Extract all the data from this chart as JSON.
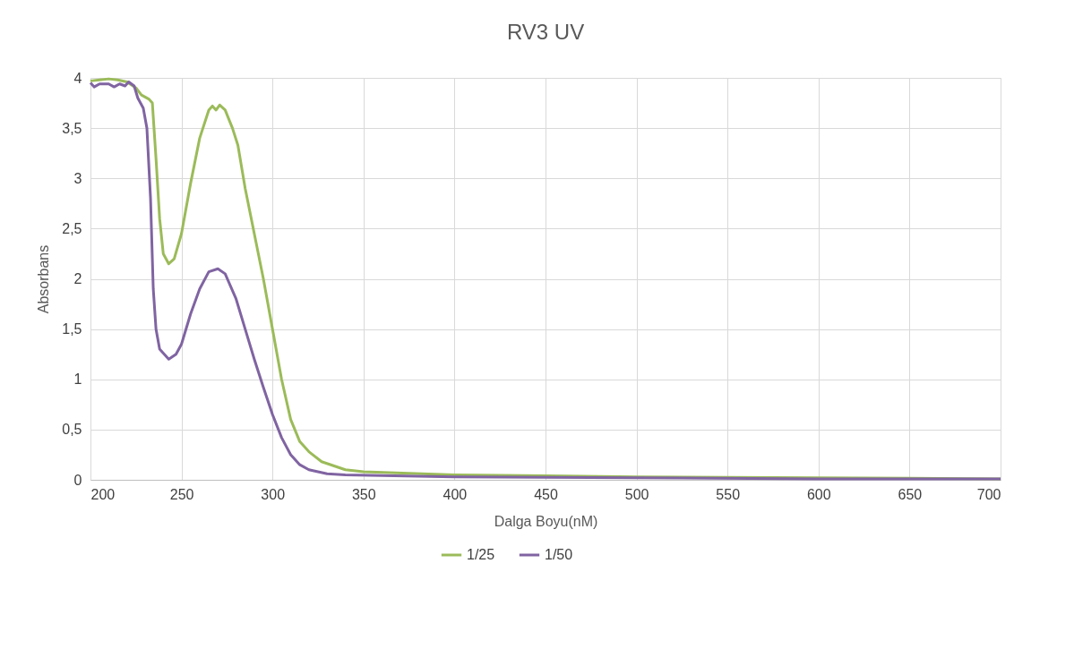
{
  "chart_data": {
    "type": "line",
    "title": "RV3 UV",
    "xlabel": "Dalga Boyu(nM)",
    "ylabel": "Absorbans",
    "xlim": [
      200,
      700
    ],
    "xticks": [
      200,
      250,
      300,
      350,
      400,
      450,
      500,
      550,
      600,
      650,
      700
    ],
    "ylim": [
      0,
      4
    ],
    "yticks": [
      0,
      {
        "value": 0.5,
        "label": "0,5"
      },
      1,
      {
        "value": 1.5,
        "label": "1,5"
      },
      2,
      {
        "value": 2.5,
        "label": "2,5"
      },
      3,
      {
        "value": 3.5,
        "label": "3,5"
      },
      4
    ],
    "grid": true,
    "legend": "bottom",
    "marker": "none",
    "line_style": "solid",
    "series": [
      {
        "name": "1/25",
        "color": "#9bbb59",
        "x": [
          200,
          205,
          210,
          215,
          220,
          225,
          228,
          232,
          234,
          236,
          238,
          240,
          243,
          246,
          250,
          255,
          260,
          265,
          267,
          269,
          271,
          274,
          278,
          281,
          285,
          290,
          295,
          300,
          305,
          310,
          315,
          320,
          327,
          340,
          350,
          400,
          450,
          500,
          600,
          700
        ],
        "values": [
          3.97,
          3.98,
          3.99,
          3.98,
          3.96,
          3.9,
          3.83,
          3.79,
          3.75,
          3.2,
          2.6,
          2.25,
          2.15,
          2.2,
          2.45,
          2.95,
          3.4,
          3.68,
          3.72,
          3.68,
          3.73,
          3.68,
          3.5,
          3.33,
          2.9,
          2.45,
          2.0,
          1.5,
          1.0,
          0.6,
          0.38,
          0.28,
          0.18,
          0.1,
          0.08,
          0.05,
          0.04,
          0.03,
          0.02,
          0.01
        ]
      },
      {
        "name": "1/50",
        "color": "#8064a2",
        "x": [
          200,
          202,
          205,
          210,
          213,
          216,
          219,
          221,
          224,
          226,
          229,
          231,
          233,
          234.5,
          236,
          238,
          243,
          247,
          250,
          255,
          260,
          265,
          270,
          274,
          280,
          285,
          290,
          295,
          300,
          305,
          310,
          315,
          320,
          330,
          340,
          400,
          500,
          600,
          700
        ],
        "values": [
          3.95,
          3.91,
          3.94,
          3.94,
          3.91,
          3.94,
          3.92,
          3.96,
          3.92,
          3.8,
          3.7,
          3.5,
          2.8,
          1.9,
          1.5,
          1.3,
          1.2,
          1.25,
          1.35,
          1.65,
          1.9,
          2.07,
          2.1,
          2.05,
          1.8,
          1.5,
          1.2,
          0.92,
          0.65,
          0.42,
          0.25,
          0.15,
          0.1,
          0.06,
          0.05,
          0.03,
          0.02,
          0.01,
          0.01
        ]
      }
    ]
  }
}
